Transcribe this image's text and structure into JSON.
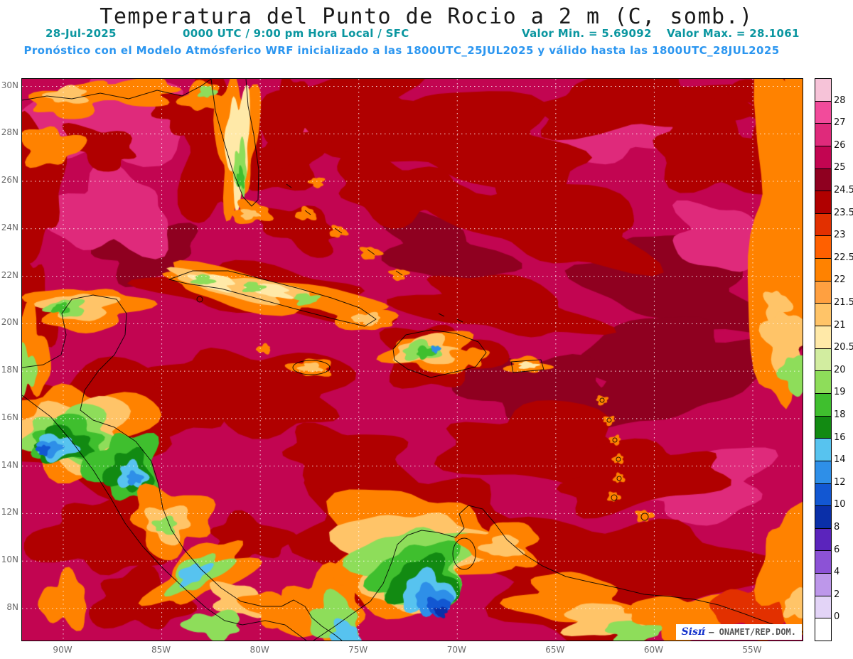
{
  "title": "Temperatura del Punto de Rocio a 2 m (C, somb.)",
  "subtitle": {
    "date": "28-Jul-2025",
    "time": "0000 UTC / 9:00 pm Hora Local / SFC",
    "min_label": "Valor Min. = 5.69092",
    "max_label": "Valor Max. = 28.1061",
    "forecast": "Pronóstico con el Modelo Atmósferico WRF inicializado a las 1800UTC_25JUL2025 y válido hasta las  1800UTC_28JUL2025"
  },
  "watermark": {
    "brand": "Sisπ́",
    "suffix": "– ONAMET/REP.DOM."
  },
  "colors": {
    "title_text": "#1a1a1a",
    "subtitle_teal": "#0a96a0",
    "forecast_blue": "#2b96f0",
    "axis_label_gray": "#6a6a6a",
    "grid_dots": "#ffffff",
    "frame_black": "#000000",
    "ocean_base": "#c20551",
    "watermark_brand_blue": "#1533cc",
    "watermark_text_gray": "#555555"
  },
  "axes": {
    "lat_labels": [
      "30N",
      "28N",
      "26N",
      "24N",
      "22N",
      "20N",
      "18N",
      "16N",
      "14N",
      "12N",
      "10N",
      "8N"
    ],
    "lon_labels": [
      "90W",
      "85W",
      "80W",
      "75W",
      "70W",
      "65W",
      "60W",
      "55W"
    ]
  },
  "colorbar": {
    "labels": [
      "28",
      "27",
      "26",
      "25",
      "24.5",
      "23.5",
      "23",
      "22.5",
      "22",
      "21.5",
      "21",
      "20.5",
      "20",
      "19",
      "18",
      "16",
      "14",
      "12",
      "10",
      "8",
      "6",
      "4",
      "2",
      "0"
    ],
    "swatches": [
      "#f6c3d8",
      "#f24b9b",
      "#df2a7b",
      "#c20551",
      "#8f0020",
      "#b00000",
      "#e23000",
      "#ff6000",
      "#ff8200",
      "#ffa040",
      "#ffc468",
      "#ffe9a8",
      "#d2eda0",
      "#8edd5a",
      "#3fbf2e",
      "#128a12",
      "#57c3ef",
      "#2e8fe8",
      "#1257d2",
      "#0a2fa8",
      "#5b24bc",
      "#8c52d6",
      "#bd97ea",
      "#e3d4f7",
      "#ffffff"
    ]
  },
  "map": {
    "features": [
      [
        0.838,
        0.367,
        0.109,
        0.076,
        15,
        4
      ],
      [
        0.829,
        0.519,
        0.128,
        0.089,
        -10,
        4
      ],
      [
        0.537,
        0.304,
        0.082,
        0.051,
        20,
        4
      ],
      [
        0.155,
        0.304,
        0.064,
        0.051,
        0,
        4
      ],
      [
        0.65,
        0.55,
        0.1,
        0.06,
        8,
        4
      ],
      [
        0.109,
        0.07,
        0.114,
        0.078,
        -8,
        2
      ],
      [
        0.114,
        0.241,
        0.077,
        0.07,
        5,
        2
      ],
      [
        0.756,
        0.095,
        0.087,
        0.053,
        -5,
        2
      ],
      [
        0.906,
        0.285,
        0.077,
        0.053,
        10,
        2
      ],
      [
        0.355,
        0.076,
        0.05,
        0.038,
        0,
        2
      ],
      [
        0.87,
        0.722,
        0.087,
        0.063,
        -8,
        2
      ],
      [
        0.41,
        0.051,
        0.118,
        0.057,
        -5,
        5
      ],
      [
        0.565,
        0.108,
        0.155,
        0.078,
        8,
        5
      ],
      [
        0.792,
        0.044,
        0.137,
        0.053,
        -3,
        5
      ],
      [
        0.893,
        0.133,
        0.087,
        0.07,
        20,
        5
      ],
      [
        0.483,
        0.196,
        0.087,
        0.053,
        10,
        5
      ],
      [
        0.328,
        0.146,
        0.068,
        0.048,
        -15,
        5
      ],
      [
        0.34,
        0.08,
        0.03,
        0.08,
        0,
        5
      ],
      [
        0.674,
        0.253,
        0.137,
        0.07,
        12,
        5
      ],
      [
        0.61,
        0.405,
        0.118,
        0.048,
        8,
        5
      ],
      [
        0.246,
        0.12,
        0.046,
        0.133,
        0,
        5
      ],
      [
        0.018,
        0.19,
        0.032,
        0.12,
        0,
        5
      ],
      [
        0.209,
        0.057,
        0.041,
        0.035,
        0,
        5
      ],
      [
        0.1,
        0.12,
        0.046,
        0.033,
        20,
        5
      ],
      [
        0.355,
        0.266,
        0.055,
        0.035,
        20,
        5
      ],
      [
        0.319,
        0.382,
        0.15,
        0.041,
        7,
        5
      ],
      [
        0.014,
        0.418,
        0.027,
        0.089,
        0,
        5
      ],
      [
        0.533,
        0.494,
        0.073,
        0.053,
        0,
        5
      ],
      [
        0.2,
        0.57,
        0.082,
        0.057,
        0,
        5
      ],
      [
        0.301,
        0.551,
        0.118,
        0.07,
        5,
        5
      ],
      [
        0.082,
        0.62,
        0.105,
        0.108,
        0,
        5
      ],
      [
        0.674,
        0.658,
        0.128,
        0.07,
        5,
        5
      ],
      [
        0.792,
        0.709,
        0.1,
        0.057,
        -8,
        5
      ],
      [
        0.483,
        0.797,
        0.137,
        0.114,
        0,
        5
      ],
      [
        0.747,
        0.886,
        0.173,
        0.108,
        0,
        5
      ],
      [
        0.965,
        0.032,
        0.05,
        0.041,
        0,
        5
      ],
      [
        0.984,
        0.127,
        0.041,
        0.12,
        0,
        5
      ],
      [
        0.1,
        0.816,
        0.082,
        0.063,
        0,
        5
      ],
      [
        0.15,
        0.93,
        0.06,
        0.05,
        0,
        5
      ],
      [
        0.29,
        0.82,
        0.05,
        0.04,
        0,
        5
      ],
      [
        0.41,
        0.671,
        0.073,
        0.051,
        0,
        5
      ],
      [
        0.064,
        0.038,
        0.05,
        0.028,
        -10,
        8
      ],
      [
        0.141,
        0.023,
        0.059,
        0.023,
        0,
        8
      ],
      [
        0.059,
        0.029,
        0.025,
        0.015,
        0,
        10
      ],
      [
        0.232,
        0.032,
        0.027,
        0.025,
        0,
        8
      ],
      [
        0.237,
        0.023,
        0.011,
        0.01,
        0,
        13
      ],
      [
        0.036,
        0.12,
        0.038,
        0.033,
        0,
        8
      ],
      [
        0.275,
        0.108,
        0.027,
        0.111,
        2,
        8
      ],
      [
        0.277,
        0.114,
        0.015,
        0.091,
        2,
        11
      ],
      [
        0.28,
        0.158,
        0.008,
        0.043,
        0,
        13
      ],
      [
        0.28,
        0.177,
        0.005,
        0.018,
        0,
        14
      ],
      [
        0.293,
        0.238,
        0.024,
        0.02,
        0,
        8
      ],
      [
        0.291,
        0.241,
        0.011,
        0.009,
        0,
        10
      ],
      [
        0.082,
        0.408,
        0.068,
        0.038,
        0,
        8
      ],
      [
        0.073,
        0.405,
        0.044,
        0.023,
        0,
        10
      ],
      [
        0.057,
        0.408,
        0.024,
        0.015,
        0,
        13
      ],
      [
        0.05,
        0.409,
        0.011,
        0.009,
        0,
        14
      ],
      [
        0.009,
        0.494,
        0.025,
        0.076,
        0,
        8
      ],
      [
        0.005,
        0.519,
        0.013,
        0.038,
        0,
        13
      ],
      [
        0.314,
        0.38,
        0.141,
        0.03,
        9,
        8
      ],
      [
        0.282,
        0.371,
        0.087,
        0.019,
        9,
        10
      ],
      [
        0.246,
        0.362,
        0.027,
        0.013,
        9,
        11
      ],
      [
        0.319,
        0.377,
        0.026,
        0.011,
        9,
        11
      ],
      [
        0.232,
        0.358,
        0.013,
        0.009,
        0,
        13
      ],
      [
        0.296,
        0.371,
        0.013,
        0.009,
        0,
        13
      ],
      [
        0.364,
        0.392,
        0.015,
        0.01,
        0,
        13
      ],
      [
        0.428,
        0.42,
        0.05,
        0.023,
        15,
        8
      ],
      [
        0.442,
        0.427,
        0.018,
        0.01,
        0,
        10
      ],
      [
        0.31,
        0.481,
        0.009,
        0.008,
        0,
        8
      ],
      [
        0.364,
        0.241,
        0.013,
        0.011,
        0,
        8
      ],
      [
        0.405,
        0.272,
        0.011,
        0.01,
        0,
        8
      ],
      [
        0.446,
        0.31,
        0.013,
        0.011,
        0,
        8
      ],
      [
        0.483,
        0.348,
        0.011,
        0.01,
        0,
        8
      ],
      [
        0.378,
        0.184,
        0.009,
        0.009,
        0,
        8
      ],
      [
        0.528,
        0.487,
        0.056,
        0.035,
        0,
        8
      ],
      [
        0.519,
        0.484,
        0.038,
        0.025,
        0,
        10
      ],
      [
        0.512,
        0.484,
        0.024,
        0.016,
        0,
        13
      ],
      [
        0.517,
        0.487,
        0.012,
        0.01,
        0,
        14
      ],
      [
        0.53,
        0.481,
        0.006,
        0.006,
        0,
        17
      ],
      [
        0.574,
        0.494,
        0.023,
        0.015,
        0,
        8
      ],
      [
        0.371,
        0.514,
        0.027,
        0.015,
        0,
        8
      ],
      [
        0.37,
        0.514,
        0.014,
        0.008,
        0,
        10
      ],
      [
        0.647,
        0.51,
        0.026,
        0.014,
        0,
        8
      ],
      [
        0.648,
        0.51,
        0.012,
        0.006,
        0,
        11
      ],
      [
        0.743,
        0.572,
        0.007,
        0.008,
        0,
        8
      ],
      [
        0.752,
        0.608,
        0.007,
        0.008,
        0,
        8
      ],
      [
        0.76,
        0.643,
        0.007,
        0.008,
        0,
        8
      ],
      [
        0.764,
        0.677,
        0.007,
        0.008,
        0,
        8
      ],
      [
        0.765,
        0.711,
        0.007,
        0.008,
        0,
        8
      ],
      [
        0.758,
        0.744,
        0.008,
        0.008,
        0,
        8
      ],
      [
        0.797,
        0.778,
        0.011,
        0.01,
        0,
        8
      ],
      [
        0.075,
        0.623,
        0.087,
        0.078,
        0,
        8
      ],
      [
        0.069,
        0.628,
        0.068,
        0.061,
        0,
        10
      ],
      [
        0.064,
        0.635,
        0.055,
        0.048,
        0,
        13
      ],
      [
        0.059,
        0.643,
        0.044,
        0.038,
        0,
        14
      ],
      [
        0.053,
        0.652,
        0.035,
        0.03,
        0,
        15
      ],
      [
        0.044,
        0.656,
        0.024,
        0.022,
        0,
        16
      ],
      [
        0.035,
        0.658,
        0.015,
        0.014,
        0,
        17
      ],
      [
        0.027,
        0.661,
        0.008,
        0.009,
        0,
        18
      ],
      [
        0.132,
        0.69,
        0.046,
        0.057,
        0,
        14
      ],
      [
        0.137,
        0.699,
        0.029,
        0.035,
        0,
        15
      ],
      [
        0.141,
        0.706,
        0.018,
        0.022,
        0,
        16
      ],
      [
        0.144,
        0.711,
        0.01,
        0.011,
        0,
        17
      ],
      [
        0.191,
        0.785,
        0.05,
        0.057,
        0,
        8
      ],
      [
        0.187,
        0.791,
        0.027,
        0.032,
        0,
        10
      ],
      [
        0.184,
        0.795,
        0.014,
        0.015,
        0,
        13
      ],
      [
        0.232,
        0.88,
        0.068,
        0.041,
        -25,
        8
      ],
      [
        0.226,
        0.88,
        0.041,
        0.025,
        -25,
        13
      ],
      [
        0.22,
        0.881,
        0.022,
        0.015,
        -25,
        16
      ],
      [
        0.287,
        0.93,
        0.05,
        0.025,
        15,
        10
      ],
      [
        0.332,
        0.943,
        0.05,
        0.028,
        5,
        8
      ],
      [
        0.246,
        0.972,
        0.036,
        0.023,
        0,
        13
      ],
      [
        0.385,
        0.945,
        0.055,
        0.065,
        0,
        8
      ],
      [
        0.4,
        0.96,
        0.03,
        0.04,
        0,
        13
      ],
      [
        0.413,
        0.99,
        0.018,
        0.025,
        0,
        16
      ],
      [
        0.499,
        0.838,
        0.105,
        0.108,
        0,
        8
      ],
      [
        0.501,
        0.851,
        0.087,
        0.086,
        0,
        10
      ],
      [
        0.505,
        0.867,
        0.071,
        0.07,
        0,
        13
      ],
      [
        0.51,
        0.884,
        0.056,
        0.056,
        0,
        14
      ],
      [
        0.515,
        0.899,
        0.044,
        0.043,
        0,
        15
      ],
      [
        0.519,
        0.914,
        0.033,
        0.033,
        0,
        16
      ],
      [
        0.526,
        0.927,
        0.024,
        0.024,
        0,
        17
      ],
      [
        0.533,
        0.939,
        0.015,
        0.015,
        0,
        18
      ],
      [
        0.537,
        0.949,
        0.008,
        0.009,
        0,
        19
      ],
      [
        0.616,
        0.829,
        0.047,
        0.038,
        0,
        8
      ],
      [
        0.616,
        0.833,
        0.024,
        0.019,
        0,
        10
      ],
      [
        0.71,
        0.93,
        0.077,
        0.044,
        8,
        8
      ],
      [
        0.747,
        0.964,
        0.055,
        0.028,
        0,
        10
      ],
      [
        0.783,
        0.984,
        0.035,
        0.019,
        0,
        13
      ],
      [
        0.847,
        0.956,
        0.064,
        0.038,
        0,
        8
      ],
      [
        0.938,
        0.943,
        0.05,
        0.044,
        0,
        6
      ],
      [
        0.055,
        0.93,
        0.03,
        0.045,
        0,
        8
      ],
      [
        0.99,
        0.04,
        0.025,
        0.05,
        0,
        8
      ],
      [
        0.979,
        0.278,
        0.05,
        0.291,
        0,
        8
      ],
      [
        0.967,
        0.405,
        0.016,
        0.028,
        0,
        10
      ],
      [
        0.979,
        0.468,
        0.027,
        0.057,
        0,
        10
      ],
      [
        0.991,
        0.525,
        0.018,
        0.035,
        0,
        13
      ],
      [
        0.985,
        0.873,
        0.036,
        0.108,
        0,
        8
      ],
      [
        0.993,
        0.937,
        0.016,
        0.025,
        0,
        10
      ]
    ]
  }
}
